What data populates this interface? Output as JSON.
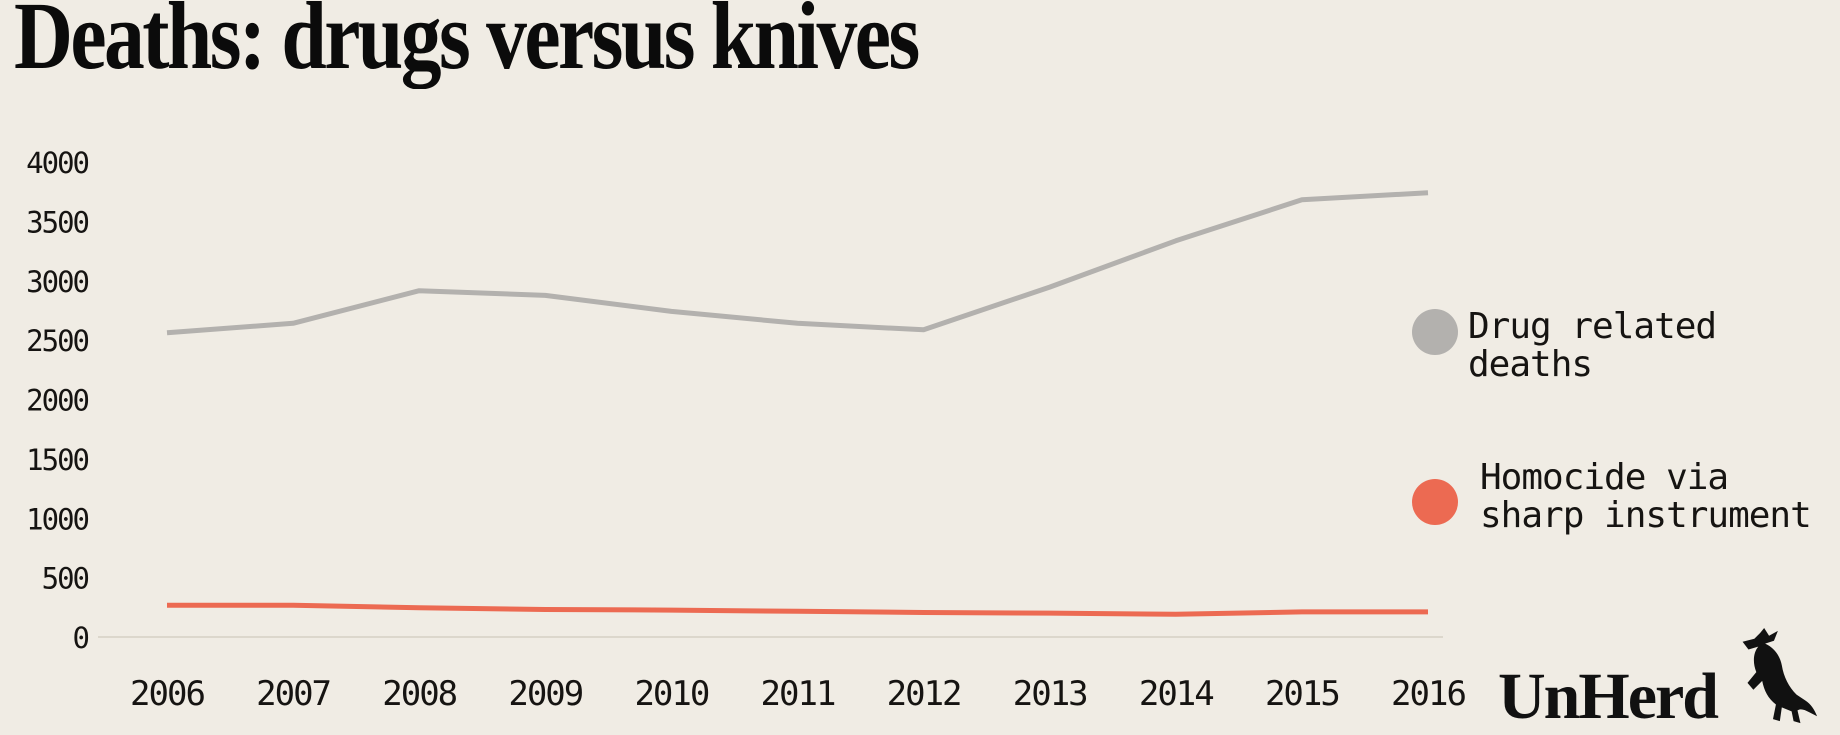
{
  "title": "Deaths: drugs versus knives",
  "colors": {
    "background": "#f0ece4",
    "text": "#161412",
    "axis_line": "#dcd7cc",
    "drug_series": "#b3b1ae",
    "knife_series": "#ec6a52"
  },
  "legend": {
    "items": [
      {
        "line1": "Drug related",
        "line2": "deaths",
        "color": "#b3b1ae"
      },
      {
        "line1": "Homocide via",
        "line2": "sharp instrument",
        "color": "#ec6a52"
      }
    ]
  },
  "branding": {
    "wordmark": "UnHerd",
    "mascot": "cow"
  },
  "chart_data": {
    "type": "line",
    "title": "Deaths: drugs versus knives",
    "x": [
      "2006",
      "2007",
      "2008",
      "2009",
      "2010",
      "2011",
      "2012",
      "2013",
      "2014",
      "2015",
      "2016"
    ],
    "series": [
      {
        "name": "Drug related deaths",
        "color": "#b3b1ae",
        "values": [
          2570,
          2650,
          2925,
          2885,
          2750,
          2650,
          2595,
          2955,
          3345,
          3690,
          3750
        ]
      },
      {
        "name": "Homocide via sharp instrument",
        "color": "#ec6a52",
        "values": [
          275,
          275,
          255,
          240,
          235,
          225,
          215,
          210,
          200,
          220,
          220
        ]
      }
    ],
    "xlabel": "",
    "ylabel": "",
    "ylim": [
      0,
      4000
    ],
    "yticks": [
      4000,
      3500,
      3000,
      2500,
      2000,
      1500,
      1000,
      500,
      0
    ],
    "grid": false,
    "legend_position": "right"
  }
}
